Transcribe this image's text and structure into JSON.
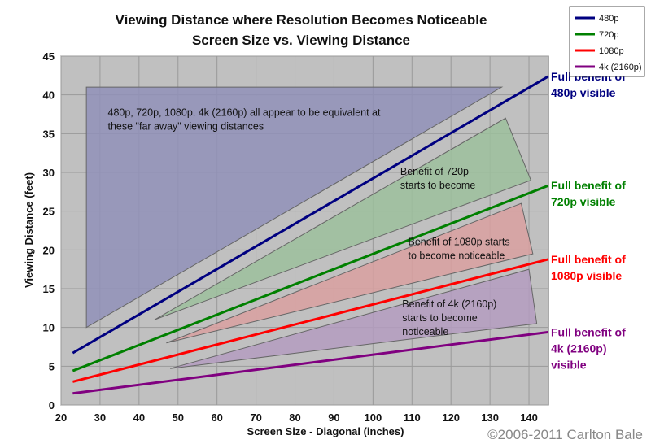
{
  "chart_data": {
    "type": "line",
    "title": "Viewing Distance where Resolution Becomes Noticeable",
    "subtitle": "Screen Size vs. Viewing Distance",
    "xlabel": "Screen Size - Diagonal (inches)",
    "ylabel": "Viewing Distance (feet)",
    "xlim": [
      20,
      145
    ],
    "ylim": [
      0,
      45
    ],
    "xticks": [
      20,
      30,
      40,
      50,
      60,
      70,
      80,
      90,
      100,
      110,
      120,
      130,
      140
    ],
    "yticks": [
      0,
      5,
      10,
      15,
      20,
      25,
      30,
      35,
      40,
      45
    ],
    "grid": true,
    "legend_position": "top-right",
    "series": [
      {
        "name": "480p",
        "color": "#000080",
        "x": [
          23,
          145
        ],
        "y": [
          6.7,
          42.4
        ]
      },
      {
        "name": "720p",
        "color": "#008000",
        "x": [
          23,
          145
        ],
        "y": [
          4.4,
          28.3
        ]
      },
      {
        "name": "1080p",
        "color": "#ff0000",
        "x": [
          23,
          145
        ],
        "y": [
          3.0,
          18.8
        ]
      },
      {
        "name": "4k (2160p)",
        "color": "#800080",
        "x": [
          23,
          145
        ],
        "y": [
          1.5,
          9.4
        ]
      }
    ],
    "regions": [
      {
        "color": "#9090b8",
        "points": [
          [
            26.5,
            41
          ],
          [
            133,
            41
          ],
          [
            26.5,
            10
          ]
        ]
      },
      {
        "color": "#9cbf9c",
        "points": [
          [
            134,
            37
          ],
          [
            140.5,
            29
          ],
          [
            44,
            11
          ]
        ]
      },
      {
        "color": "#d9a0a0",
        "points": [
          [
            138,
            26
          ],
          [
            141,
            19.5
          ],
          [
            47,
            8
          ]
        ]
      },
      {
        "color": "#b49cbf",
        "points": [
          [
            140,
            17.5
          ],
          [
            142,
            10.5
          ],
          [
            48,
            4.7
          ]
        ]
      }
    ],
    "annotations": [
      {
        "lines": [
          "480p, 720p, 1080p, 4k (2160p) all appear to be equivalent at",
          "these \"far away\" viewing distances"
        ],
        "x": 32,
        "y": 37.3
      },
      {
        "lines": [
          "Benefit of 720p",
          "starts to become"
        ],
        "x": 107,
        "y": 29.7
      },
      {
        "lines": [
          "Benefit of 1080p starts",
          "to become noticeable"
        ],
        "x": 109,
        "y": 20.6
      },
      {
        "lines": [
          "Benefit of 4k (2160p)",
          "starts to become",
          "noticeable"
        ],
        "x": 107.5,
        "y": 12.6
      }
    ],
    "side_labels": [
      {
        "lines": [
          "Full benefit of",
          "480p visible"
        ],
        "color": "#000080",
        "y": 42.4
      },
      {
        "lines": [
          "Full benefit of",
          "720p visible"
        ],
        "color": "#008000",
        "y": 28.3
      },
      {
        "lines": [
          "Full benefit of",
          "1080p visible"
        ],
        "color": "#ff0000",
        "y": 18.8
      },
      {
        "lines": [
          "Full benefit of",
          "4k (2160p)",
          "visible"
        ],
        "color": "#800080",
        "y": 9.4
      }
    ],
    "copyright": "©2006-2011 Carlton Bale"
  }
}
